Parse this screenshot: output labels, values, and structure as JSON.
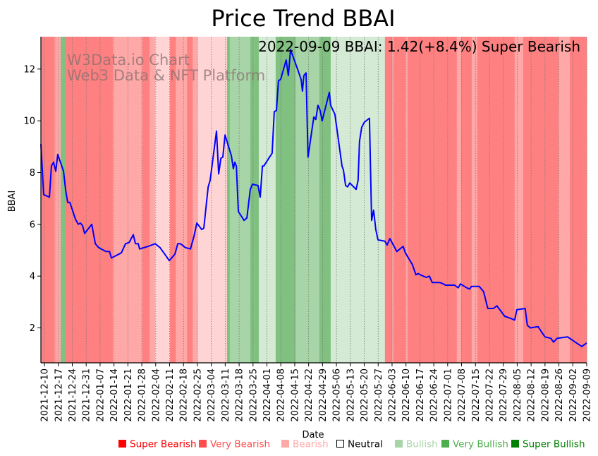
{
  "chart_data": {
    "type": "line",
    "title": "Price Trend BBAI",
    "xlabel": "Date",
    "ylabel": "BBAI",
    "ylim": [
      0.65,
      13.25
    ],
    "yticks": [
      2,
      4,
      6,
      8,
      10,
      12
    ],
    "x_start_date": "2021-12-10",
    "xlim_days": [
      -1.8,
      273
    ],
    "xticks": [
      "2021-12-10",
      "2021-12-17",
      "2021-12-24",
      "2021-12-31",
      "2022-01-07",
      "2022-01-14",
      "2022-01-21",
      "2022-01-28",
      "2022-02-04",
      "2022-02-11",
      "2022-02-18",
      "2022-02-25",
      "2022-03-04",
      "2022-03-11",
      "2022-03-18",
      "2022-03-25",
      "2022-04-01",
      "2022-04-08",
      "2022-04-15",
      "2022-04-22",
      "2022-04-29",
      "2022-05-06",
      "2022-05-13",
      "2022-05-20",
      "2022-05-27",
      "2022-06-03",
      "2022-06-10",
      "2022-06-17",
      "2022-06-24",
      "2022-07-01",
      "2022-07-08",
      "2022-07-15",
      "2022-07-22",
      "2022-07-29",
      "2022-08-05",
      "2022-08-12",
      "2022-08-19",
      "2022-08-26",
      "2022-09-02",
      "2022-09-09"
    ],
    "grid": "vertical-dotted",
    "status_text": "2022-09-09 BBAI: 1.42(+8.4%) Super Bearish",
    "watermark": [
      "W3Data.io Chart",
      "Web3 Data & NFT Platform"
    ],
    "line_color": "#0000ff",
    "series": [
      {
        "name": "BBAI",
        "points": [
          [
            -1.8,
            9.1
          ],
          [
            -0.4,
            7.15
          ],
          [
            2.5,
            7.05
          ],
          [
            3.5,
            8.25
          ],
          [
            4.6,
            8.4
          ],
          [
            5.7,
            8.05
          ],
          [
            6.7,
            8.7
          ],
          [
            9.6,
            8.05
          ],
          [
            10.7,
            7.3
          ],
          [
            11.7,
            6.85
          ],
          [
            12.8,
            6.85
          ],
          [
            15.6,
            6.2
          ],
          [
            17.0,
            6.0
          ],
          [
            18.1,
            6.05
          ],
          [
            19.2,
            5.95
          ],
          [
            20.2,
            5.65
          ],
          [
            23.8,
            6.0
          ],
          [
            25.6,
            5.25
          ],
          [
            27.3,
            5.1
          ],
          [
            30.9,
            4.95
          ],
          [
            32.7,
            4.95
          ],
          [
            33.7,
            4.7
          ],
          [
            38.7,
            4.9
          ],
          [
            40.8,
            5.25
          ],
          [
            42.6,
            5.3
          ],
          [
            44.7,
            5.6
          ],
          [
            45.8,
            5.25
          ],
          [
            47.2,
            5.25
          ],
          [
            47.9,
            5.05
          ],
          [
            52.2,
            5.15
          ],
          [
            53.9,
            5.2
          ],
          [
            55.7,
            5.25
          ],
          [
            58.2,
            5.1
          ],
          [
            61.0,
            4.8
          ],
          [
            62.8,
            4.6
          ],
          [
            65.7,
            4.85
          ],
          [
            67.1,
            5.25
          ],
          [
            68.5,
            5.25
          ],
          [
            71.0,
            5.1
          ],
          [
            73.5,
            5.05
          ],
          [
            75.3,
            5.55
          ],
          [
            76.7,
            6.05
          ],
          [
            79.2,
            5.8
          ],
          [
            80.2,
            5.85
          ],
          [
            82.4,
            7.45
          ],
          [
            83.4,
            7.7
          ],
          [
            86.6,
            9.6
          ],
          [
            87.7,
            7.95
          ],
          [
            88.8,
            8.55
          ],
          [
            89.8,
            8.6
          ],
          [
            90.9,
            9.45
          ],
          [
            94.1,
            8.65
          ],
          [
            95.1,
            8.15
          ],
          [
            95.8,
            8.4
          ],
          [
            96.6,
            8.25
          ],
          [
            97.6,
            6.5
          ],
          [
            100.5,
            6.15
          ],
          [
            101.9,
            6.25
          ],
          [
            103.6,
            7.35
          ],
          [
            104.7,
            7.55
          ],
          [
            107.5,
            7.5
          ],
          [
            108.6,
            7.05
          ],
          [
            109.7,
            8.25
          ],
          [
            110.4,
            8.25
          ],
          [
            114.6,
            8.75
          ],
          [
            115.7,
            10.35
          ],
          [
            116.8,
            10.4
          ],
          [
            117.8,
            11.55
          ],
          [
            118.9,
            11.6
          ],
          [
            121.7,
            12.35
          ],
          [
            122.8,
            11.75
          ],
          [
            123.9,
            12.75
          ],
          [
            127.4,
            12.0
          ],
          [
            129.2,
            11.6
          ],
          [
            129.9,
            11.15
          ],
          [
            130.6,
            11.75
          ],
          [
            131.7,
            11.85
          ],
          [
            132.7,
            8.6
          ],
          [
            135.6,
            10.15
          ],
          [
            136.6,
            10.05
          ],
          [
            137.7,
            10.6
          ],
          [
            138.8,
            10.4
          ],
          [
            139.8,
            10.0
          ],
          [
            143.4,
            11.1
          ],
          [
            144.1,
            10.6
          ],
          [
            146.2,
            10.25
          ],
          [
            149.8,
            8.25
          ],
          [
            150.5,
            8.1
          ],
          [
            151.6,
            7.5
          ],
          [
            152.6,
            7.45
          ],
          [
            153.7,
            7.6
          ],
          [
            156.9,
            7.35
          ],
          [
            157.9,
            7.7
          ],
          [
            158.6,
            9.2
          ],
          [
            159.7,
            9.75
          ],
          [
            161.1,
            9.95
          ],
          [
            163.6,
            10.1
          ],
          [
            164.7,
            6.15
          ],
          [
            165.7,
            6.55
          ],
          [
            166.8,
            5.8
          ],
          [
            167.9,
            5.4
          ],
          [
            171.4,
            5.35
          ],
          [
            172.5,
            5.2
          ],
          [
            173.9,
            5.45
          ],
          [
            177.4,
            4.95
          ],
          [
            180.6,
            5.15
          ],
          [
            181.7,
            4.9
          ],
          [
            185.2,
            4.45
          ],
          [
            187.0,
            4.05
          ],
          [
            188.1,
            4.1
          ],
          [
            189.2,
            4.05
          ],
          [
            192.3,
            3.95
          ],
          [
            193.8,
            4.0
          ],
          [
            195.2,
            3.75
          ],
          [
            199.1,
            3.75
          ],
          [
            200.9,
            3.7
          ],
          [
            201.9,
            3.65
          ],
          [
            206.5,
            3.65
          ],
          [
            208.3,
            3.55
          ],
          [
            209.4,
            3.7
          ],
          [
            212.6,
            3.55
          ],
          [
            214.0,
            3.5
          ],
          [
            215.0,
            3.6
          ],
          [
            218.9,
            3.6
          ],
          [
            221.1,
            3.4
          ],
          [
            223.2,
            2.75
          ],
          [
            226.0,
            2.75
          ],
          [
            227.8,
            2.85
          ],
          [
            231.7,
            2.45
          ],
          [
            235.3,
            2.35
          ],
          [
            236.7,
            2.3
          ],
          [
            237.8,
            2.7
          ],
          [
            242.0,
            2.75
          ],
          [
            243.1,
            2.1
          ],
          [
            244.6,
            2.0
          ],
          [
            248.5,
            2.05
          ],
          [
            250.2,
            1.85
          ],
          [
            252.0,
            1.65
          ],
          [
            254.9,
            1.6
          ],
          [
            256.3,
            1.45
          ],
          [
            258.1,
            1.6
          ],
          [
            263.4,
            1.65
          ],
          [
            270.5,
            1.28
          ],
          [
            273.0,
            1.42
          ]
        ]
      }
    ],
    "sentiment_bands": [
      {
        "from": -1.8,
        "to": 5.0,
        "level": "super_bearish"
      },
      {
        "from": 5.0,
        "to": 6.0,
        "level": "very_bearish_light"
      },
      {
        "from": 6.0,
        "to": 8.2,
        "level": "bearish"
      },
      {
        "from": 8.2,
        "to": 10.7,
        "level": "very_bullish"
      },
      {
        "from": 10.7,
        "to": 34.4,
        "level": "super_bearish"
      },
      {
        "from": 34.4,
        "to": 38.0,
        "level": "bearish"
      },
      {
        "from": 38.0,
        "to": 49.3,
        "level": "bearish"
      },
      {
        "from": 49.3,
        "to": 52.9,
        "level": "super_bearish"
      },
      {
        "from": 52.9,
        "to": 55.7,
        "level": "bearish"
      },
      {
        "from": 55.7,
        "to": 63.2,
        "level": "neutral_bearish"
      },
      {
        "from": 63.2,
        "to": 66.1,
        "level": "super_bearish"
      },
      {
        "from": 66.1,
        "to": 70.0,
        "level": "bearish"
      },
      {
        "from": 70.0,
        "to": 71.8,
        "level": "bearish"
      },
      {
        "from": 71.8,
        "to": 74.6,
        "level": "super_bearish"
      },
      {
        "from": 74.6,
        "to": 77.1,
        "level": "bearish"
      },
      {
        "from": 77.1,
        "to": 91.9,
        "level": "neutral_bearish"
      },
      {
        "from": 91.9,
        "to": 93.3,
        "level": "very_bullish"
      },
      {
        "from": 93.3,
        "to": 103.6,
        "level": "bullish"
      },
      {
        "from": 103.6,
        "to": 107.9,
        "level": "very_bullish"
      },
      {
        "from": 107.9,
        "to": 116.4,
        "level": "neutral_bullish"
      },
      {
        "from": 116.4,
        "to": 126.4,
        "level": "very_bullish"
      },
      {
        "from": 126.4,
        "to": 138.4,
        "level": "bullish"
      },
      {
        "from": 138.4,
        "to": 144.1,
        "level": "very_bullish"
      },
      {
        "from": 144.1,
        "to": 171.4,
        "level": "neutral_bullish"
      },
      {
        "from": 171.4,
        "to": 175.0,
        "level": "super_bearish"
      },
      {
        "from": 175.0,
        "to": 175.7,
        "level": "bearish"
      },
      {
        "from": 175.7,
        "to": 181.7,
        "level": "super_bearish"
      },
      {
        "from": 181.7,
        "to": 182.8,
        "level": "bearish"
      },
      {
        "from": 182.8,
        "to": 207.6,
        "level": "super_bearish"
      },
      {
        "from": 207.6,
        "to": 209.8,
        "level": "bearish"
      },
      {
        "from": 209.8,
        "to": 215.1,
        "level": "super_bearish"
      },
      {
        "from": 215.1,
        "to": 217.9,
        "level": "bearish"
      },
      {
        "from": 217.9,
        "to": 236.7,
        "level": "super_bearish"
      },
      {
        "from": 236.7,
        "to": 241.0,
        "level": "bearish"
      },
      {
        "from": 241.0,
        "to": 258.8,
        "level": "super_bearish"
      },
      {
        "from": 258.8,
        "to": 264.5,
        "level": "bearish"
      },
      {
        "from": 264.5,
        "to": 273.0,
        "level": "super_bearish"
      }
    ],
    "band_colors": {
      "super_bearish": "#ff8080",
      "very_bearish_light": "#ff9a9a",
      "bearish": "#ffa8a8",
      "neutral_bearish": "#ffd4d4",
      "neutral_bullish": "#d4ead4",
      "bullish": "#a8d5a8",
      "very_bullish": "#80c080"
    },
    "legend": [
      {
        "label": "Super Bearish",
        "color": "#ff0000",
        "text_color": "#ff0000",
        "filled": true
      },
      {
        "label": "Very Bearish",
        "color": "#ff4d4d",
        "text_color": "#ff4d4d",
        "filled": true
      },
      {
        "label": "Bearish",
        "color": "#ffa8a8",
        "text_color": "#ffa8a8",
        "filled": true
      },
      {
        "label": "Neutral",
        "color": "#000000",
        "text_color": "#000000",
        "filled": false
      },
      {
        "label": "Bullish",
        "color": "#a8d5a8",
        "text_color": "#a8d5a8",
        "filled": true
      },
      {
        "label": "Very Bullish",
        "color": "#4caf4c",
        "text_color": "#4caf4c",
        "filled": true
      },
      {
        "label": "Super Bullish",
        "color": "#008000",
        "text_color": "#008000",
        "filled": true
      }
    ],
    "legend_placement": "bottom-right"
  }
}
